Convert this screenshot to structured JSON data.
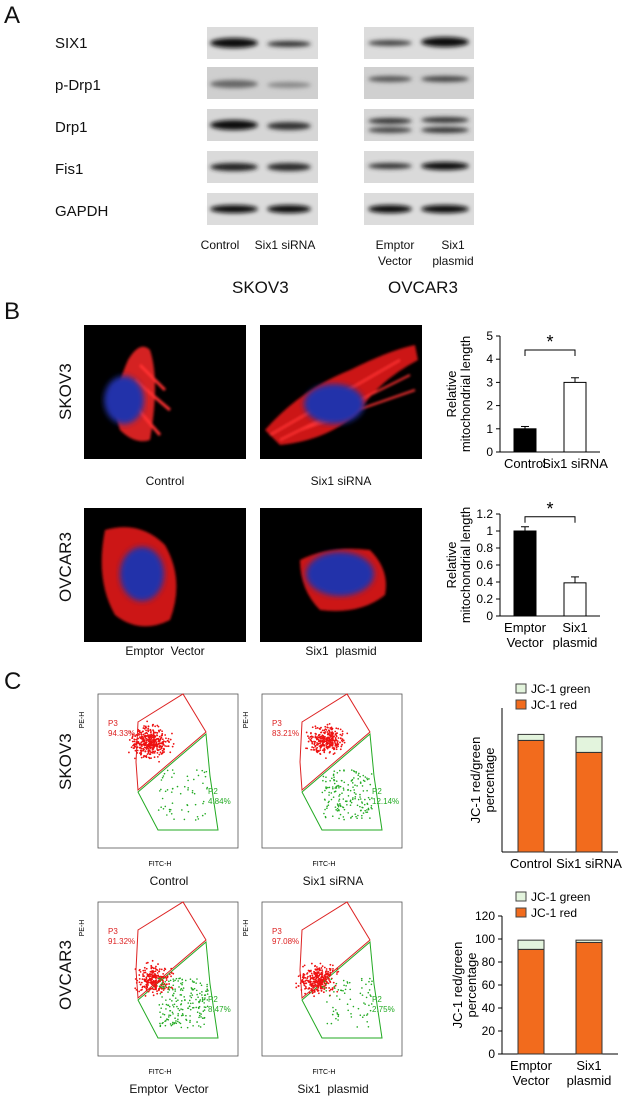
{
  "panelA": {
    "letter": "A",
    "proteins": [
      "SIX1",
      "p-Drp1",
      "Drp1",
      "Fis1",
      "GAPDH"
    ],
    "skov3": {
      "lane1": "Control",
      "lane2": "Six1 siRNA",
      "cell_line": "SKOV3"
    },
    "ovcar3": {
      "lane1_l1": "Emptor",
      "lane1_l2": "Vector",
      "lane2_l1": "Six1",
      "lane2_l2": "plasmid",
      "cell_line": "OVCAR3"
    }
  },
  "panelB": {
    "letter": "B",
    "row1": {
      "cell_line": "SKOV3",
      "cap1": "Control",
      "cap2": "Six1 siRNA"
    },
    "row2": {
      "cell_line": "OVCAR3",
      "cap1": "Emptor  Vector",
      "cap2": "Six1  plasmid"
    }
  },
  "panelC": {
    "letter": "C",
    "row1": {
      "cell_line": "SKOV3",
      "cap1": "Control",
      "cap2": "Six1 siRNA",
      "p3a": "P3",
      "p3a_val": "94.33%",
      "p2a": "P2",
      "p2a_val": "4.84%",
      "p3b": "P3",
      "p3b_val": "83.21%",
      "p2b": "P2",
      "p2b_val": "12.14%"
    },
    "row2": {
      "cell_line": "OVCAR3",
      "cap1": "Emptor  Vector",
      "cap2": "Six1  plasmid",
      "p3a": "P3",
      "p3a_val": "91.32%",
      "p2a": "P2",
      "p2a_val": "8.47%",
      "p3b": "P3",
      "p3b_val": "97.08%",
      "p2b": "P2",
      "p2b_val": "2.75%"
    },
    "flow_axes": {
      "x": "FITC-H",
      "y": "PE-H"
    }
  },
  "chart_data": [
    {
      "type": "bar",
      "categories": [
        "Control",
        "Six1 siRNA"
      ],
      "values": [
        1.0,
        3.0
      ],
      "errors": [
        0.1,
        0.2
      ],
      "colors": [
        "#000000",
        "#ffffff"
      ],
      "ylabel_l1": "Relative",
      "ylabel_l2": "mitochondrial length",
      "ylim": [
        0,
        5
      ],
      "yticks": [
        "0",
        "1",
        "2",
        "3",
        "4",
        "5"
      ],
      "significance": "*"
    },
    {
      "type": "bar",
      "categories": [
        "Emptor|Vector",
        "Six1|plasmid"
      ],
      "values": [
        1.0,
        0.39
      ],
      "errors": [
        0.05,
        0.07
      ],
      "colors": [
        "#000000",
        "#ffffff"
      ],
      "ylabel_l1": "Relative",
      "ylabel_l2": "mitochondrial length",
      "ylim": [
        0,
        1.2
      ],
      "yticks": [
        "0",
        "0.2",
        "0.4",
        "0.6",
        "0.8",
        "1",
        "1.2"
      ],
      "significance": "*"
    },
    {
      "type": "bar",
      "stacked": true,
      "categories": [
        "Control",
        "Six1 siRNA"
      ],
      "series": [
        {
          "name": "JC-1 red",
          "color": "#f26b1d",
          "values": [
            93,
            83
          ]
        },
        {
          "name": "JC-1 green",
          "color": "#e3f4dd",
          "values": [
            5,
            13
          ]
        }
      ],
      "ylabel_l1": "JC-1 red/green",
      "ylabel_l2": "percentage",
      "ylim": [
        0,
        120
      ],
      "legend": "top"
    },
    {
      "type": "bar",
      "stacked": true,
      "categories": [
        "Emptor|Vector",
        "Six1|plasmid"
      ],
      "series": [
        {
          "name": "JC-1 red",
          "color": "#f26b1d",
          "values": [
            91,
            97
          ]
        },
        {
          "name": "JC-1 green",
          "color": "#e3f4dd",
          "values": [
            8,
            2
          ]
        }
      ],
      "ylabel_l1": "JC-1 red/green",
      "ylabel_l2": "percentage",
      "ylim": [
        0,
        120
      ],
      "yticks": [
        "0",
        "20",
        "40",
        "60",
        "80",
        "100",
        "120"
      ],
      "legend": "top"
    }
  ]
}
